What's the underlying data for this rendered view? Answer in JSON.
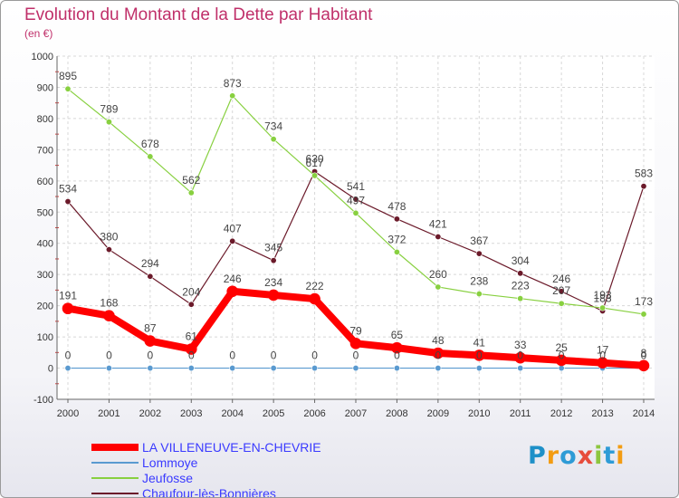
{
  "title": "Evolution du Montant de la Dette par Habitant",
  "unit": "(en €)",
  "logo": {
    "text": "Proxiti",
    "colors": [
      "#1e90c8",
      "#f39c12",
      "#2e9bd6",
      "#e74c3c",
      "#8dc63f",
      "#2e9bd6",
      "#f39c12"
    ]
  },
  "chart_data": {
    "type": "line",
    "x": [
      "2000",
      "2001",
      "2002",
      "2003",
      "2004",
      "2005",
      "2006",
      "2007",
      "2008",
      "2009",
      "2010",
      "2011",
      "2012",
      "2013",
      "2014"
    ],
    "ylim": [
      -100,
      1000
    ],
    "yticks": [
      "-100",
      "0",
      "100",
      "200",
      "300",
      "400",
      "500",
      "600",
      "700",
      "800",
      "900",
      "1000"
    ],
    "grid": true,
    "legend": "bottom-left",
    "series": [
      {
        "name": "Chaufour-lès-Bonnières",
        "color": "#6b1a2a",
        "width": 1.2,
        "values": [
          534,
          380,
          294,
          204,
          407,
          345,
          630,
          541,
          478,
          421,
          367,
          304,
          246,
          183,
          583
        ],
        "labels": [
          "534",
          "380",
          "294",
          "204",
          "407",
          "345",
          "630",
          "541",
          "478",
          "421",
          "367",
          "304",
          "246",
          "183",
          "583"
        ]
      },
      {
        "name": "Jeufosse",
        "color": "#88d040",
        "width": 1.2,
        "values": [
          895,
          789,
          678,
          562,
          873,
          734,
          617,
          497,
          372,
          260,
          238,
          223,
          207,
          193,
          173
        ],
        "labels": [
          "895",
          "789",
          "678",
          "562",
          "873",
          "734",
          "617",
          "497",
          "372",
          "260",
          "238",
          "223",
          "207",
          "193",
          "173"
        ]
      },
      {
        "name": "Lommoye",
        "color": "#5a9ad0",
        "width": 1.2,
        "values": [
          0,
          0,
          0,
          0,
          0,
          0,
          0,
          0,
          0,
          0,
          0,
          0,
          0,
          0,
          0
        ],
        "labels": [
          "0",
          "0",
          "0",
          "0",
          "0",
          "0",
          "0",
          "0",
          "0",
          "0",
          "0",
          "0",
          "0",
          "0",
          "0"
        ]
      },
      {
        "name": "LA VILLENEUVE-EN-CHEVRIE",
        "color": "#ff0000",
        "width": 8,
        "values": [
          191,
          168,
          87,
          61,
          246,
          234,
          222,
          79,
          65,
          48,
          41,
          33,
          25,
          17,
          8
        ],
        "labels": [
          "191",
          "168",
          "87",
          "61",
          "246",
          "234",
          "222",
          "79",
          "65",
          "48",
          "41",
          "33",
          "25",
          "17",
          "8"
        ]
      }
    ],
    "legend_order": [
      "LA VILLENEUVE-EN-CHEVRIE",
      "Lommoye",
      "Jeufosse",
      "Chaufour-lès-Bonnières"
    ]
  }
}
